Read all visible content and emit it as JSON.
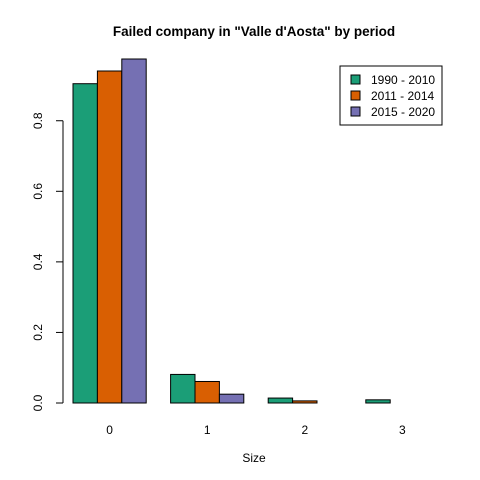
{
  "chart_data": {
    "type": "bar",
    "title": "Failed company in \"Valle d'Aosta\" by period",
    "xlabel": "Size",
    "ylabel": "",
    "categories": [
      "0",
      "1",
      "2",
      "3"
    ],
    "series": [
      {
        "name": "1990 - 2010",
        "color": "#1B9E77",
        "values": [
          0.905,
          0.081,
          0.014,
          0.009
        ]
      },
      {
        "name": "2011 - 2014",
        "color": "#D95F02",
        "values": [
          0.941,
          0.061,
          0.006,
          0.0
        ]
      },
      {
        "name": "2015 - 2020",
        "color": "#7570B3",
        "values": [
          0.975,
          0.025,
          0.0,
          0.0
        ]
      }
    ],
    "ylim": [
      0,
      0.975
    ],
    "yticks": [
      0.0,
      0.2,
      0.4,
      0.6,
      0.8
    ],
    "ytick_labels": [
      "0.0",
      "0.2",
      "0.4",
      "0.6",
      "0.8"
    ],
    "grid": false,
    "legend_position": "top-right"
  }
}
